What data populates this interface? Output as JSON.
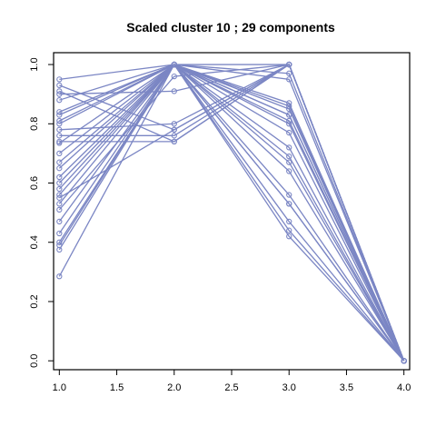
{
  "chart_data": {
    "type": "line",
    "title": "Scaled cluster 10 ; 29 components",
    "xlabel": "",
    "ylabel": "",
    "xlim": [
      0.95,
      4.05
    ],
    "ylim": [
      -0.03,
      1.04
    ],
    "xticks": [
      1.0,
      1.5,
      2.0,
      2.5,
      3.0,
      3.5,
      4.0
    ],
    "xtick_labels": [
      "1.0",
      "1.5",
      "2.0",
      "2.5",
      "3.0",
      "3.5",
      "4.0"
    ],
    "yticks": [
      0.0,
      0.2,
      0.4,
      0.6,
      0.8,
      1.0
    ],
    "ytick_labels": [
      "0.0",
      "0.2",
      "0.4",
      "0.6",
      "0.8",
      "1.0"
    ],
    "grid": false,
    "line_color": "#7b86c4",
    "x": [
      1,
      2,
      3,
      4
    ],
    "series": [
      {
        "values": [
          0.95,
          1.0,
          0.42,
          0.0
        ]
      },
      {
        "values": [
          0.93,
          0.78,
          1.0,
          0.0
        ]
      },
      {
        "values": [
          0.91,
          0.74,
          1.0,
          0.0
        ]
      },
      {
        "values": [
          0.9,
          0.91,
          1.0,
          0.0
        ]
      },
      {
        "values": [
          0.88,
          1.0,
          0.44,
          0.0
        ]
      },
      {
        "values": [
          0.84,
          1.0,
          0.47,
          0.0
        ]
      },
      {
        "values": [
          0.83,
          1.0,
          0.53,
          0.0
        ]
      },
      {
        "values": [
          0.81,
          1.0,
          0.56,
          0.0
        ]
      },
      {
        "values": [
          0.8,
          1.0,
          0.64,
          0.0
        ]
      },
      {
        "values": [
          0.78,
          0.8,
          1.0,
          0.0
        ]
      },
      {
        "values": [
          0.74,
          0.74,
          1.0,
          0.0
        ]
      },
      {
        "values": [
          0.735,
          1.0,
          0.67,
          0.0
        ]
      },
      {
        "values": [
          0.67,
          1.0,
          0.69,
          0.0
        ]
      },
      {
        "values": [
          0.65,
          1.0,
          0.72,
          0.0
        ]
      },
      {
        "values": [
          0.62,
          1.0,
          0.77,
          0.0
        ]
      },
      {
        "values": [
          0.6,
          1.0,
          0.8,
          0.0
        ]
      },
      {
        "values": [
          0.58,
          1.0,
          0.81,
          0.0
        ]
      },
      {
        "values": [
          0.56,
          1.0,
          0.83,
          0.0
        ]
      },
      {
        "values": [
          0.53,
          1.0,
          0.85,
          0.0
        ]
      },
      {
        "values": [
          0.51,
          0.96,
          1.0,
          0.0
        ]
      },
      {
        "values": [
          0.47,
          1.0,
          0.87,
          0.0
        ]
      },
      {
        "values": [
          0.43,
          1.0,
          0.95,
          0.0
        ]
      },
      {
        "values": [
          0.4,
          1.0,
          0.97,
          0.0
        ]
      },
      {
        "values": [
          0.39,
          1.0,
          1.0,
          0.0
        ]
      },
      {
        "values": [
          0.375,
          1.0,
          0.53,
          0.0
        ]
      },
      {
        "values": [
          0.285,
          1.0,
          0.83,
          0.0
        ]
      },
      {
        "values": [
          0.76,
          0.76,
          1.0,
          0.0
        ]
      },
      {
        "values": [
          0.7,
          1.0,
          0.86,
          0.0
        ]
      },
      {
        "values": [
          0.55,
          0.78,
          1.0,
          0.0
        ]
      }
    ]
  }
}
